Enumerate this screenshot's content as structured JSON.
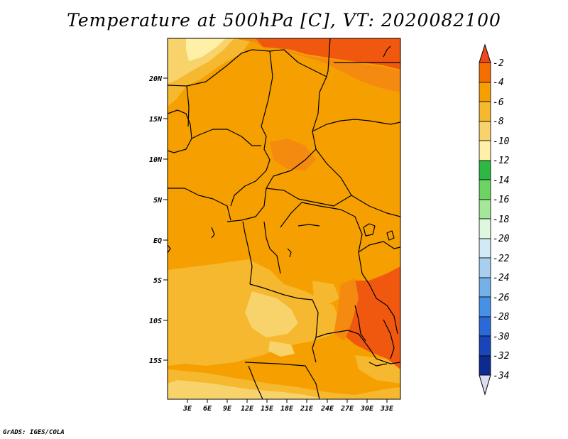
{
  "title": "Temperature at 500hPa [C], VT: 2020082100",
  "credit": "GrADS: IGES/COLA",
  "map": {
    "lat_labels": [
      "20N",
      "15N",
      "10N",
      "5N",
      "EQ",
      "5S",
      "10S",
      "15S"
    ],
    "lon_labels": [
      "3E",
      "6E",
      "9E",
      "12E",
      "15E",
      "18E",
      "21E",
      "24E",
      "27E",
      "30E",
      "33E"
    ],
    "colors": {
      "c2": "#f0580f",
      "c4": "#f5a000",
      "c6": "#f5b82e",
      "c8": "#f8d36b",
      "c10": "#fff0a8",
      "border": "#000000"
    }
  },
  "colorbar": {
    "labels": [
      "-2",
      "-4",
      "-6",
      "-8",
      "-10",
      "-12",
      "-14",
      "-16",
      "-18",
      "-20",
      "-22",
      "-24",
      "-26",
      "-28",
      "-30",
      "-32",
      "-34"
    ],
    "colors": [
      "#f0461b",
      "#f56f00",
      "#f5a000",
      "#f5b82e",
      "#f8d36b",
      "#fff0a8",
      "#2db844",
      "#6dd463",
      "#a3e898",
      "#dff7df",
      "#d2e9f7",
      "#a8cff0",
      "#74b0ea",
      "#4591e6",
      "#2969d8",
      "#1a45b8",
      "#0d2a8f",
      "#0a1a6a",
      "#dcdcf5"
    ]
  }
}
